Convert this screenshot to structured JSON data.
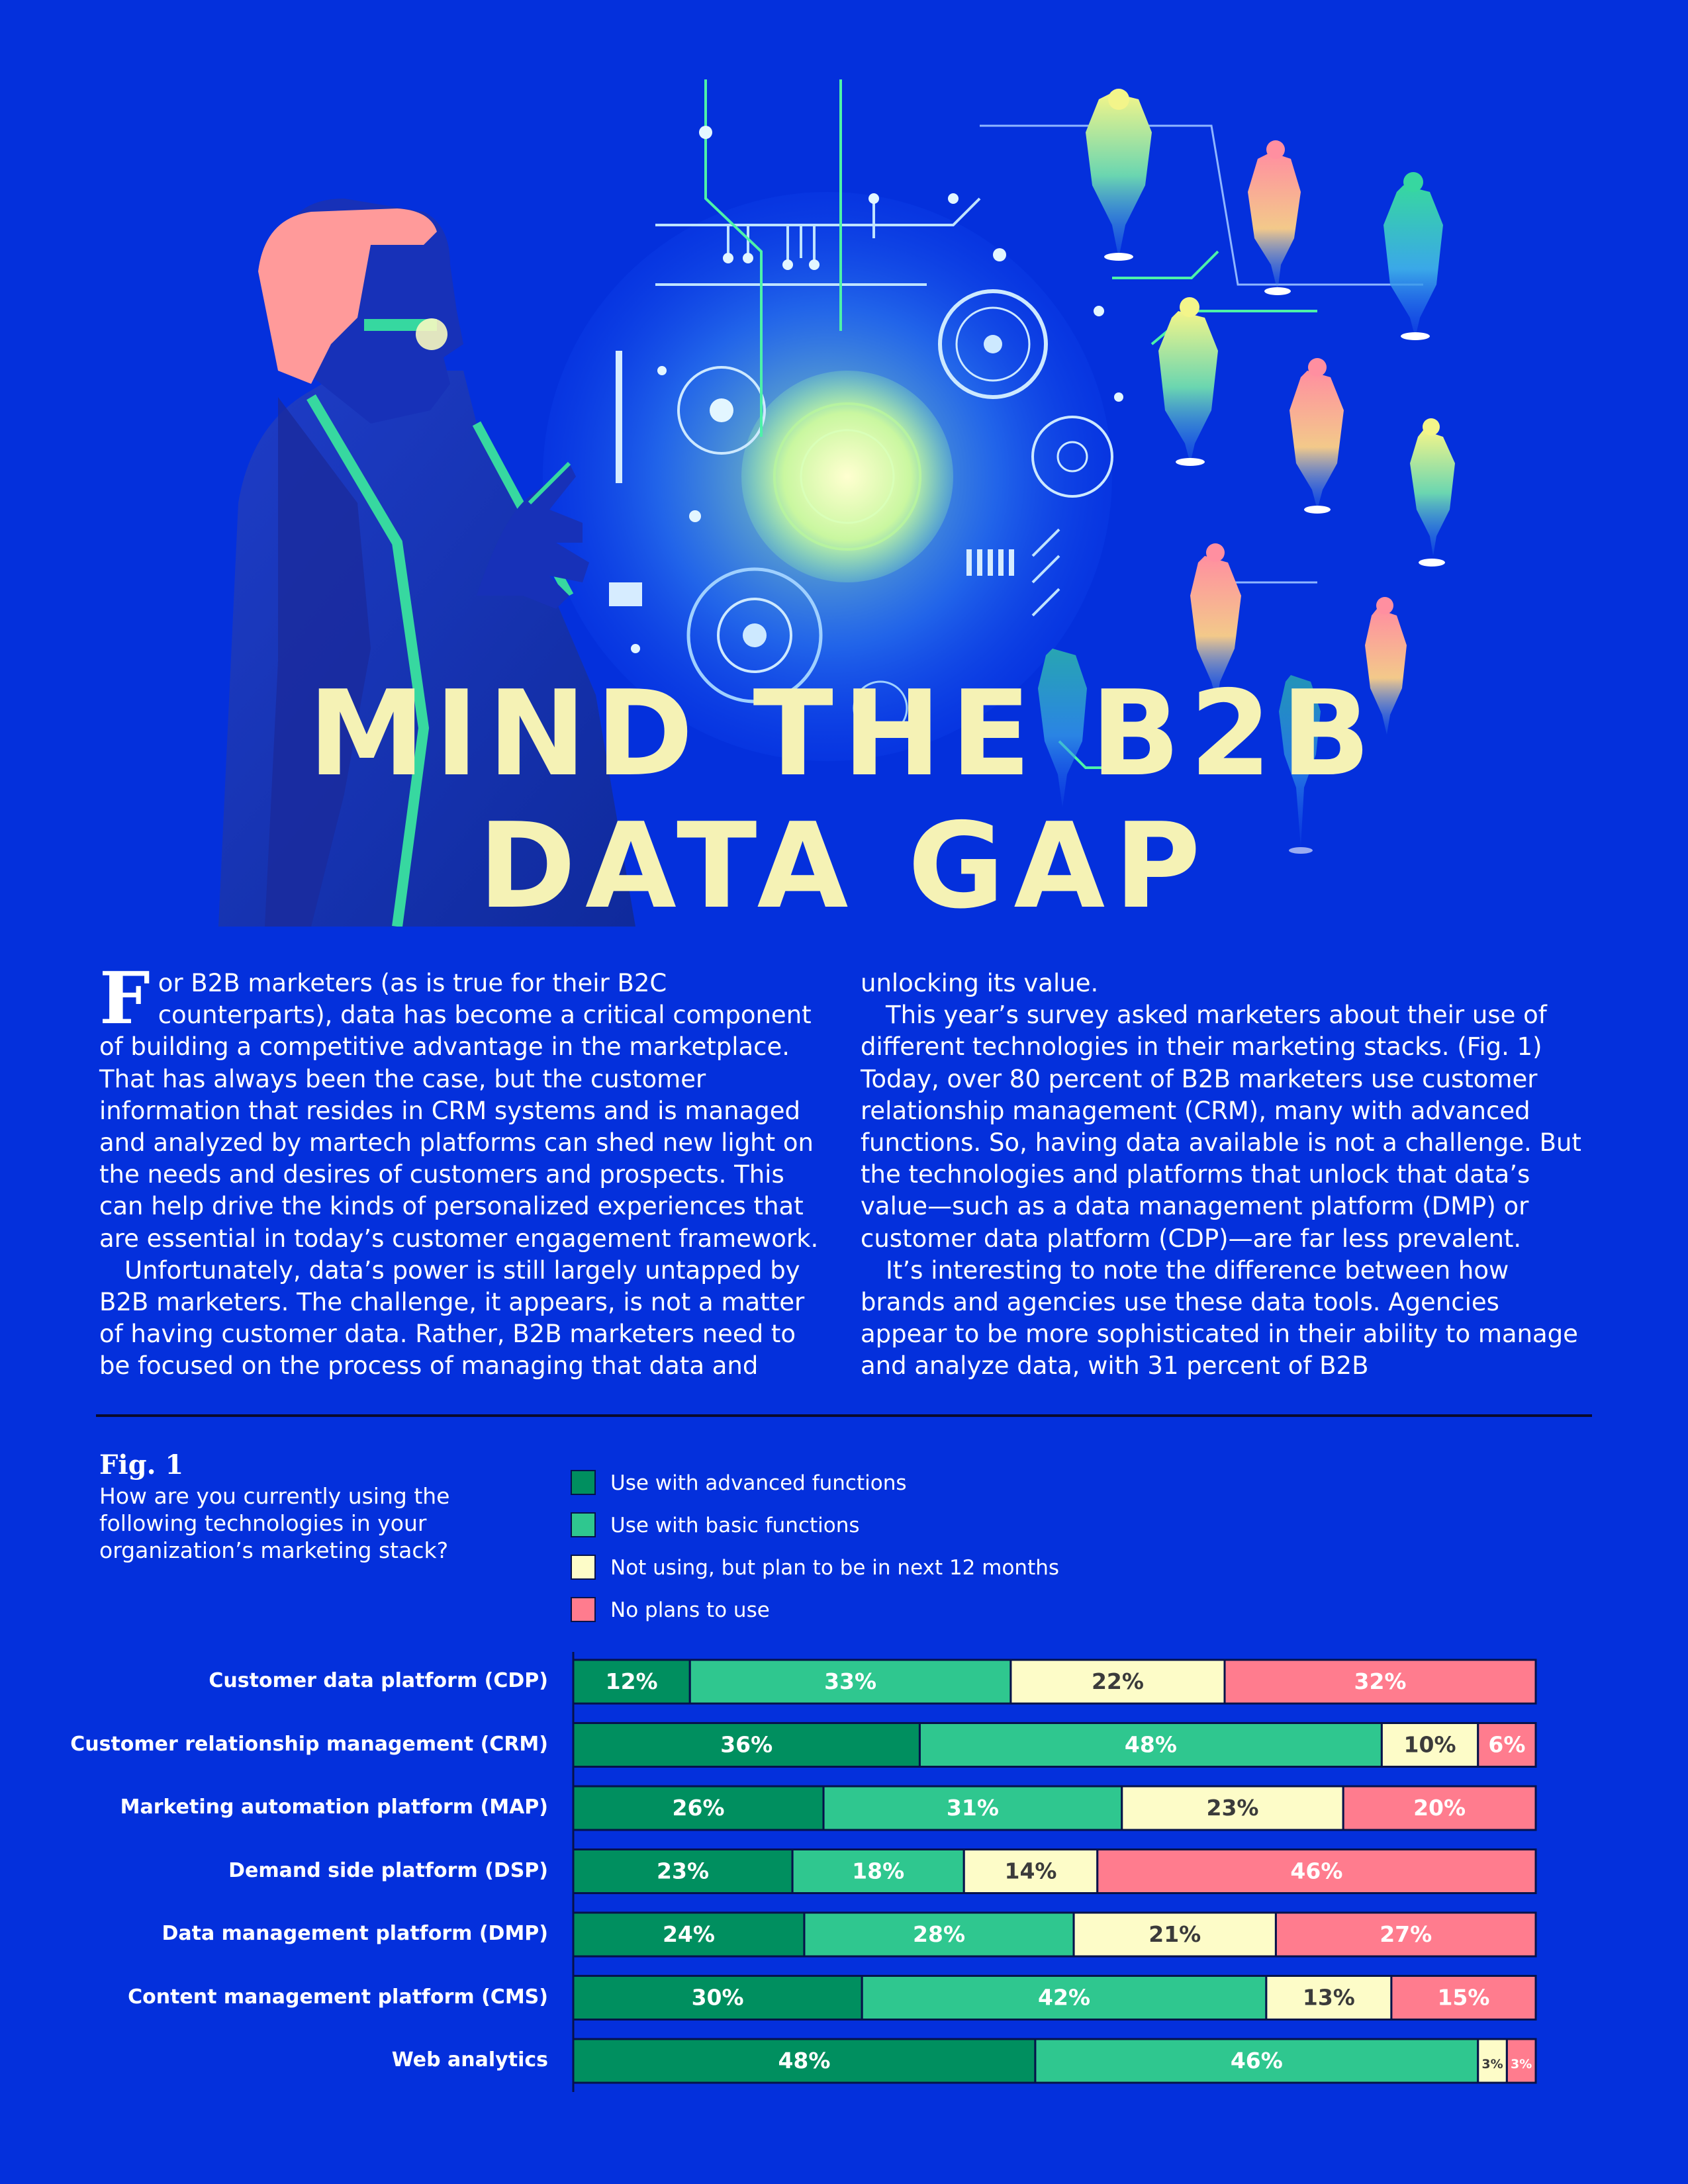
{
  "title": {
    "line1": "MIND THE B2B",
    "line2": "DATA GAP"
  },
  "article": {
    "dropcap": "F",
    "left_p1_rest": "or B2B marketers (as is true for their B2C counterparts), data has become a critical component of building a competitive advantage in the marketplace. That has always been the case, but the customer information that resides in CRM systems and is managed and analyzed by martech platforms can shed new light on the needs and desires of customers and prospects. This can help drive the kinds of personalized experiences that are essential in today’s customer engagement framework.",
    "left_p2": "Unfortunately, data’s power is still largely untapped by B2B marketers. The challenge, it appears, is not a matter of having customer data. Rather, B2B marketers need to be focused on the process of managing that data and",
    "right_p1": "unlocking its value.",
    "right_p2": "This year’s survey asked marketers about their use of different technologies in their marketing stacks. (Fig. 1) Today, over 80 percent of B2B marketers use customer relationship management (CRM), many with advanced functions. So, having data available is not a challenge. But the technologies and platforms that unlock that data’s value—such as a data management platform (DMP) or customer data platform (CDP)—are far less prevalent.",
    "right_p3": "It’s interesting to note the difference between how brands and agencies use these data tools. Agencies appear to be more sophisticated in their ability to manage and analyze data, with 31 percent of B2B"
  },
  "figure": {
    "label": "Fig. 1",
    "question": "How are you currently using the following technologies in your organization’s marketing stack?"
  },
  "colors": {
    "background": "#0430dc",
    "advanced": "#008f5f",
    "basic": "#2fc78f",
    "plan": "#fdfcc8",
    "noplan": "#ff7c8e",
    "title": "#f5f2b5"
  },
  "chart_data": {
    "type": "bar",
    "orientation": "horizontal",
    "stacked": true,
    "unit": "%",
    "categories": [
      "Customer data platform (CDP)",
      "Customer relationship management (CRM)",
      "Marketing automation platform (MAP)",
      "Demand side platform (DSP)",
      "Data management platform (DMP)",
      "Content management platform (CMS)",
      "Web analytics"
    ],
    "series": [
      {
        "name": "Use with advanced functions",
        "color": "#008f5f",
        "label_color": "#ffffff",
        "values": [
          12,
          36,
          26,
          23,
          24,
          30,
          48
        ]
      },
      {
        "name": "Use with basic functions",
        "color": "#2fc78f",
        "label_color": "#ffffff",
        "values": [
          33,
          48,
          31,
          18,
          28,
          42,
          46
        ]
      },
      {
        "name": "Not using, but plan to be in next 12 months",
        "color": "#fdfcc8",
        "label_color": "#3b3b3b",
        "values": [
          22,
          10,
          23,
          14,
          21,
          13,
          3
        ]
      },
      {
        "name": "No plans to use",
        "color": "#ff7c8e",
        "label_color": "#ffffff",
        "values": [
          32,
          6,
          20,
          46,
          27,
          15,
          3
        ]
      }
    ],
    "legend_position": "top"
  }
}
